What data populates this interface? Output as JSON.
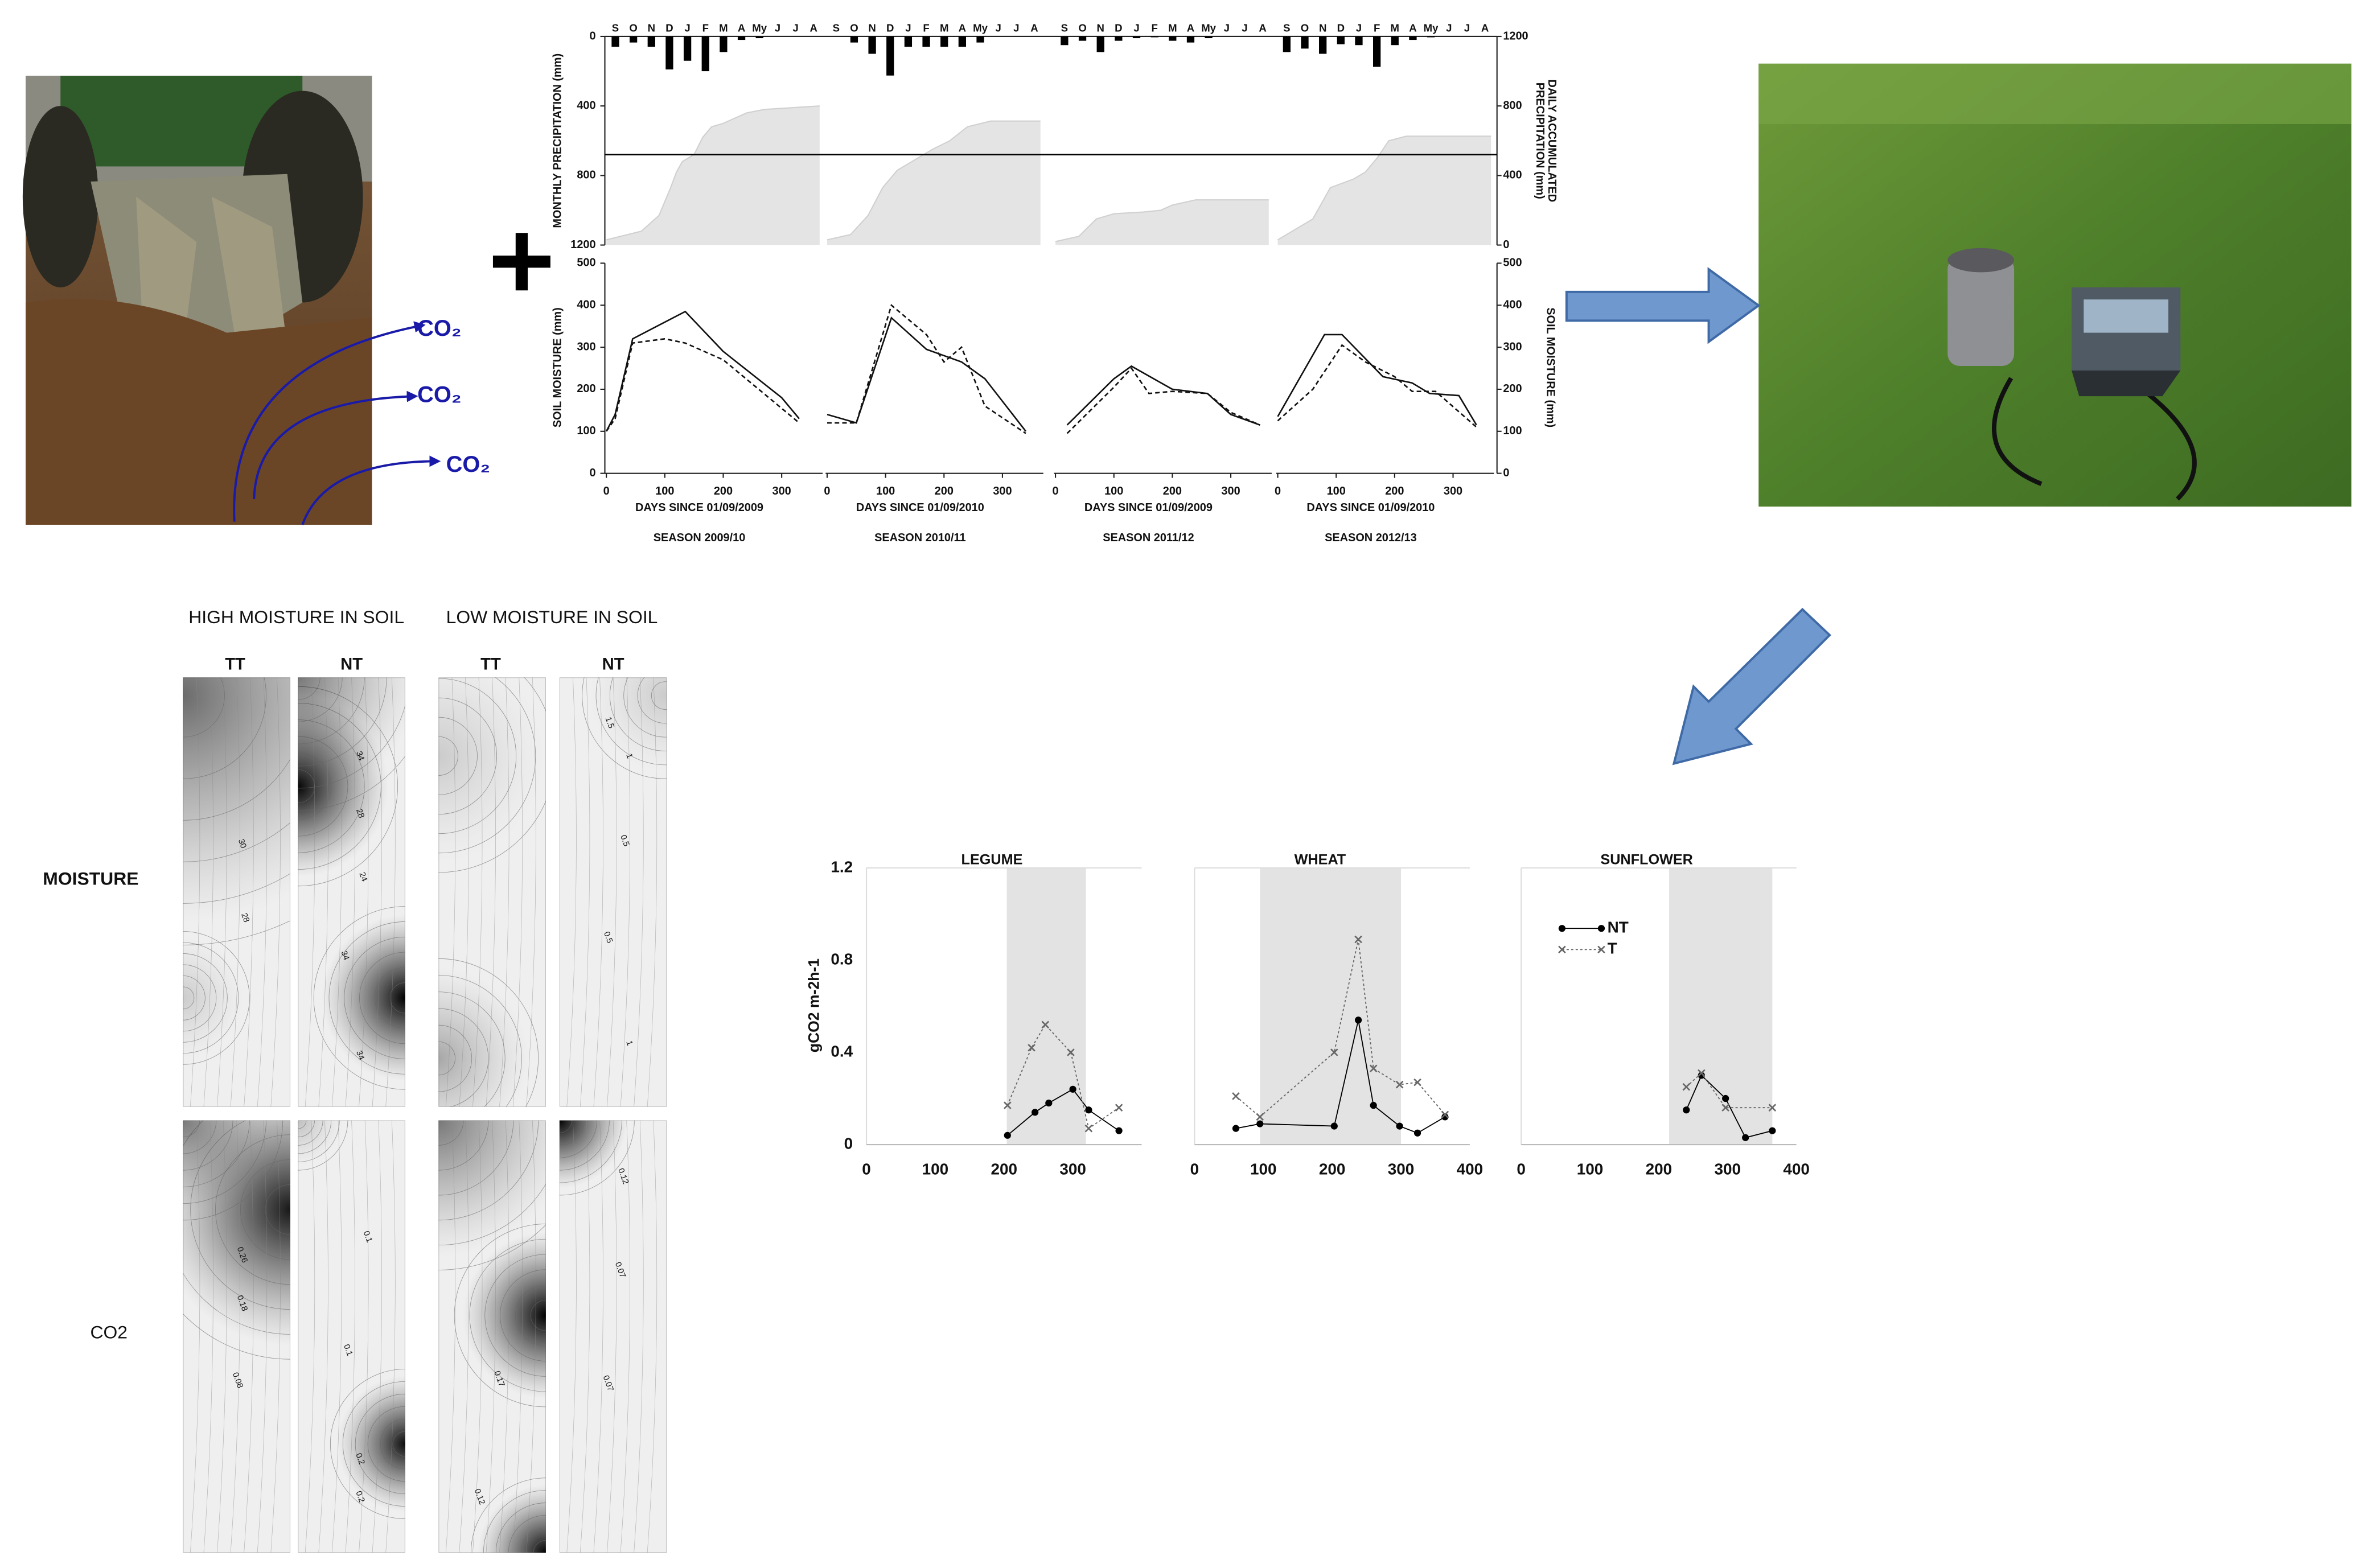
{
  "chart_data": [
    {
      "type": "seasons",
      "precip_ylabel": "MONTHLY PRECIPITATION (mm)",
      "precip_ylim": [
        0,
        1200
      ],
      "precip_yticks": [
        0,
        400,
        800,
        1200
      ],
      "precip_axis_inverted": true,
      "accum_ylabel": [
        "DAILY ACCUMULATED",
        "PRECIPITATION (mm)"
      ],
      "accum_ylim": [
        0,
        1200
      ],
      "accum_yticks": [
        0,
        400,
        800,
        1200
      ],
      "reference_line": 520,
      "ylabel": "SOIL MOISTURE (mm)",
      "ylim": [
        0,
        500
      ],
      "yticks": [
        0,
        100,
        200,
        300,
        400,
        500
      ],
      "y2label": "SOIL MOISTURE (mm)",
      "y2lim": [
        0,
        500
      ],
      "y2ticks": [
        0,
        100,
        200,
        300,
        400,
        500
      ],
      "xlim": [
        0,
        370
      ],
      "xticks": [
        0,
        100,
        200,
        300
      ],
      "panels": [
        {
          "season": "SEASON 2009/10",
          "xlabel": "DAYS SINCE 01/09/2009",
          "months": [
            "S",
            "O",
            "N",
            "D",
            "J",
            "F",
            "M",
            "A",
            "My",
            "J",
            "J",
            "A"
          ],
          "monthly": [
            60,
            35,
            60,
            190,
            140,
            200,
            90,
            20,
            10,
            0,
            0,
            0
          ],
          "accum_x": [
            0,
            60,
            90,
            110,
            120,
            130,
            150,
            165,
            180,
            200,
            240,
            270,
            365
          ],
          "accum": [
            30,
            80,
            170,
            330,
            420,
            480,
            520,
            620,
            680,
            700,
            760,
            780,
            800
          ],
          "series": [
            {
              "color": "#111",
              "dash": false,
              "x": [
                0,
                15,
                45,
                135,
                200,
                300,
                330
              ],
              "values": [
                100,
                140,
                320,
                385,
                290,
                180,
                130
              ]
            },
            {
              "color": "#111",
              "dash": true,
              "x": [
                0,
                15,
                45,
                100,
                135,
                200,
                330
              ],
              "values": [
                100,
                130,
                310,
                320,
                310,
                270,
                120
              ]
            }
          ]
        },
        {
          "season": "SEASON 2010/11",
          "xlabel": "DAYS SINCE 01/09/2010",
          "months": [
            "S",
            "O",
            "N",
            "D",
            "J",
            "F",
            "M",
            "A",
            "My",
            "J",
            "J",
            "A"
          ],
          "monthly": [
            0,
            35,
            100,
            225,
            60,
            60,
            60,
            60,
            35,
            0,
            0,
            0
          ],
          "accum_x": [
            0,
            40,
            70,
            95,
            120,
            150,
            180,
            210,
            240,
            280,
            365
          ],
          "accum": [
            30,
            60,
            170,
            330,
            430,
            490,
            550,
            600,
            680,
            713,
            713
          ],
          "series": [
            {
              "color": "#111",
              "dash": false,
              "x": [
                0,
                50,
                110,
                170,
                230,
                270,
                340
              ],
              "values": [
                140,
                120,
                370,
                295,
                265,
                225,
                100
              ]
            },
            {
              "color": "#111",
              "dash": true,
              "x": [
                0,
                50,
                110,
                170,
                200,
                230,
                270,
                340
              ],
              "values": [
                120,
                120,
                400,
                330,
                265,
                300,
                160,
                95
              ]
            }
          ]
        },
        {
          "season": "SEASON 2011/12",
          "xlabel": "DAYS SINCE 01/09/2009",
          "months": [
            "S",
            "O",
            "N",
            "D",
            "J",
            "F",
            "M",
            "A",
            "My",
            "J",
            "J",
            "A"
          ],
          "monthly": [
            50,
            25,
            90,
            25,
            10,
            5,
            25,
            35,
            10,
            0,
            0,
            0
          ],
          "accum_x": [
            0,
            40,
            70,
            100,
            150,
            180,
            200,
            240,
            365
          ],
          "accum": [
            20,
            50,
            150,
            180,
            190,
            200,
            230,
            260,
            260
          ],
          "series": [
            {
              "color": "#111",
              "dash": false,
              "x": [
                20,
                100,
                130,
                200,
                260,
                300,
                350
              ],
              "values": [
                115,
                225,
                255,
                200,
                190,
                140,
                115
              ]
            },
            {
              "color": "#111",
              "dash": true,
              "x": [
                20,
                100,
                130,
                160,
                200,
                260,
                300,
                350
              ],
              "values": [
                95,
                205,
                250,
                190,
                195,
                190,
                145,
                115
              ]
            }
          ]
        },
        {
          "season": "SEASON 2012/13",
          "xlabel": "DAYS SINCE 01/09/2010",
          "months": [
            "S",
            "O",
            "N",
            "D",
            "J",
            "F",
            "M",
            "A",
            "My",
            "J",
            "J",
            "A"
          ],
          "monthly": [
            90,
            70,
            100,
            45,
            50,
            175,
            50,
            20,
            5,
            0,
            0,
            0
          ],
          "accum_x": [
            0,
            60,
            90,
            130,
            150,
            170,
            190,
            220,
            365
          ],
          "accum": [
            30,
            150,
            330,
            380,
            420,
            500,
            600,
            626,
            626
          ],
          "series": [
            {
              "color": "#111",
              "dash": false,
              "x": [
                0,
                80,
                110,
                180,
                230,
                260,
                310,
                340
              ],
              "values": [
                135,
                330,
                330,
                230,
                215,
                190,
                185,
                115
              ]
            },
            {
              "color": "#111",
              "dash": true,
              "x": [
                0,
                60,
                110,
                150,
                200,
                230,
                270,
                340
              ],
              "values": [
                125,
                200,
                305,
                265,
                230,
                195,
                195,
                110
              ]
            }
          ]
        }
      ]
    },
    {
      "type": "flux",
      "title": "LEGUME",
      "ylabel": "gCO2 m-2h-1",
      "xlim": [
        0,
        400
      ],
      "xticks": [
        0,
        100,
        200,
        300
      ],
      "ylim": [
        0,
        1.2
      ],
      "yticks": [
        0,
        0.4,
        0.8,
        1.2
      ],
      "span": [
        204,
        319
      ],
      "grid": false,
      "series": [
        {
          "color": "#000",
          "marker": "circle",
          "line": "solid",
          "x": [
            205,
            245,
            265,
            300,
            323,
            367
          ],
          "values": [
            0.04,
            0.14,
            0.18,
            0.24,
            0.15,
            0.06
          ]
        },
        {
          "color": "#666",
          "marker": "x",
          "line": "dotted",
          "x": [
            205,
            240,
            260,
            297,
            323,
            367
          ],
          "values": [
            0.17,
            0.42,
            0.52,
            0.4,
            0.07,
            0.16
          ]
        }
      ]
    },
    {
      "type": "flux",
      "title": "WHEAT",
      "xlim": [
        0,
        400
      ],
      "xticks": [
        0,
        100,
        200,
        300,
        400
      ],
      "ylim": [
        0,
        1.2
      ],
      "span": [
        95,
        300
      ],
      "grid": false,
      "series": [
        {
          "color": "#000",
          "marker": "circle",
          "line": "solid",
          "x": [
            60,
            95,
            203,
            238,
            260,
            298,
            324,
            364
          ],
          "values": [
            0.07,
            0.09,
            0.08,
            0.54,
            0.17,
            0.08,
            0.05,
            0.12
          ]
        },
        {
          "color": "#666",
          "marker": "x",
          "line": "dotted",
          "x": [
            60,
            95,
            203,
            238,
            260,
            298,
            324,
            364
          ],
          "values": [
            0.21,
            0.12,
            0.4,
            0.89,
            0.33,
            0.26,
            0.27,
            0.13
          ]
        }
      ]
    },
    {
      "type": "flux",
      "title": "SUNFLOWER",
      "xlim": [
        0,
        400
      ],
      "xticks": [
        0,
        100,
        200,
        300,
        400
      ],
      "ylim": [
        0,
        1.2
      ],
      "span": [
        215,
        365
      ],
      "grid": false,
      "legend": "upper left",
      "series": [
        {
          "name": "NT",
          "color": "#000",
          "marker": "circle",
          "line": "solid",
          "x": [
            240,
            262,
            297,
            326,
            365
          ],
          "values": [
            0.15,
            0.3,
            0.2,
            0.03,
            0.06
          ]
        },
        {
          "name": "T",
          "color": "#666",
          "marker": "x",
          "line": "dotted",
          "x": [
            240,
            262,
            297,
            365
          ],
          "values": [
            0.25,
            0.31,
            0.16,
            0.16
          ]
        }
      ]
    }
  ],
  "photo_labels": [
    "CO₂",
    "CO₂",
    "CO₂"
  ],
  "maps": {
    "headers": [
      "HIGH MOISTURE IN SOIL",
      "LOW MOISTURE IN SOIL"
    ],
    "columns": [
      "TT",
      "NT",
      "TT",
      "NT"
    ],
    "rows": [
      "MOISTURE",
      "CO2"
    ],
    "contour_labels": [
      [
        "30",
        "28"
      ],
      [
        "34",
        "28",
        "24",
        "34",
        "34"
      ],
      [],
      [
        "1.5",
        "1",
        "0.5",
        "0.5",
        "1"
      ],
      [
        "0.26",
        "0.18",
        "0.08"
      ],
      [
        "0.1",
        "0.1",
        "0.2",
        "0.2"
      ],
      [
        "0.17",
        "0.12"
      ],
      [
        "0.12",
        "0.07",
        "0.07"
      ]
    ]
  }
}
